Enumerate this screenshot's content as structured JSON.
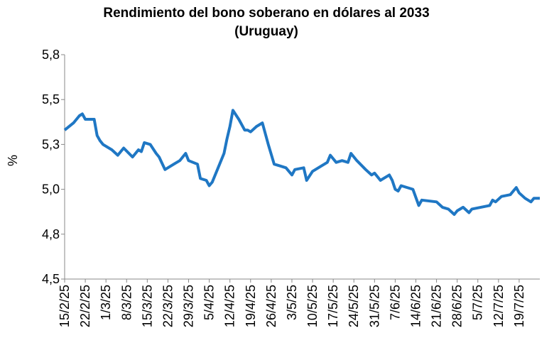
{
  "chart_data": {
    "type": "line",
    "title": "Rendimiento del bono soberano en dólares al 2033",
    "subtitle": "(Uruguay)",
    "y_label": "%",
    "color": "#1f77c4",
    "x": [
      "15/2/25",
      "18/2/25",
      "20/2/25",
      "21/2/25",
      "22/2/25",
      "25/2/25",
      "26/2/25",
      "27/2/25",
      "28/2/25",
      "3/3/25",
      "5/3/25",
      "7/3/25",
      "10/3/25",
      "12/3/25",
      "13/3/25",
      "14/3/25",
      "16/3/25",
      "18/3/25",
      "19/3/25",
      "21/3/25",
      "24/3/25",
      "26/3/25",
      "28/3/25",
      "29/3/25",
      "1/4/25",
      "2/4/25",
      "4/4/25",
      "5/4/25",
      "6/4/25",
      "8/4/25",
      "10/4/25",
      "11/4/25",
      "12/4/25",
      "13/4/25",
      "15/4/25",
      "17/4/25",
      "18/4/25",
      "19/4/25",
      "21/4/25",
      "23/4/25",
      "25/4/25",
      "27/4/25",
      "29/4/25",
      "1/5/25",
      "3/5/25",
      "4/5/25",
      "7/5/25",
      "8/5/25",
      "10/5/25",
      "13/5/25",
      "15/5/25",
      "16/5/25",
      "18/5/25",
      "20/5/25",
      "22/5/25",
      "23/5/25",
      "25/5/25",
      "28/5/25",
      "30/5/25",
      "31/5/25",
      "2/6/25",
      "5/6/25",
      "6/6/25",
      "7/6/25",
      "8/6/25",
      "9/6/25",
      "13/6/25",
      "15/6/25",
      "16/6/25",
      "21/6/25",
      "23/6/25",
      "25/6/25",
      "27/6/25",
      "28/6/25",
      "30/6/25",
      "2/7/25",
      "3/7/25",
      "6/7/25",
      "9/7/25",
      "10/7/25",
      "11/7/25",
      "13/7/25",
      "16/7/25",
      "18/7/25",
      "19/7/25",
      "21/7/25",
      "23/7/25",
      "24/7/25",
      "26/7/25"
    ],
    "values": [
      5.33,
      5.37,
      5.41,
      5.42,
      5.39,
      5.39,
      5.3,
      5.27,
      5.25,
      5.22,
      5.19,
      5.23,
      5.18,
      5.22,
      5.21,
      5.26,
      5.25,
      5.2,
      5.18,
      5.11,
      5.14,
      5.16,
      5.2,
      5.16,
      5.14,
      5.06,
      5.05,
      5.02,
      5.04,
      5.12,
      5.2,
      5.28,
      5.35,
      5.44,
      5.39,
      5.33,
      5.33,
      5.32,
      5.35,
      5.37,
      5.25,
      5.14,
      5.13,
      5.12,
      5.08,
      5.11,
      5.12,
      5.05,
      5.1,
      5.13,
      5.15,
      5.19,
      5.15,
      5.16,
      5.15,
      5.2,
      5.16,
      5.11,
      5.08,
      5.09,
      5.05,
      5.08,
      5.05,
      5.0,
      4.99,
      5.02,
      5.0,
      4.91,
      4.94,
      4.93,
      4.9,
      4.89,
      4.86,
      4.88,
      4.9,
      4.87,
      4.89,
      4.9,
      4.91,
      4.94,
      4.93,
      4.96,
      4.97,
      5.01,
      4.98,
      4.95,
      4.93,
      4.95,
      4.95
    ],
    "xlim": [
      "15/2/25",
      "26/7/25"
    ],
    "xticks": [
      "15/2/25",
      "22/2/25",
      "1/3/25",
      "8/3/25",
      "15/3/25",
      "22/3/25",
      "29/3/25",
      "5/4/25",
      "12/4/25",
      "19/4/25",
      "26/4/25",
      "3/5/25",
      "10/5/25",
      "17/5/25",
      "24/5/25",
      "31/5/25",
      "7/6/25",
      "14/6/25",
      "21/6/25",
      "28/6/25",
      "5/7/25",
      "12/7/25",
      "19/7/25"
    ],
    "ylim": [
      4.5,
      5.75
    ],
    "yticks": [
      {
        "value": 4.5,
        "label": "4,5"
      },
      {
        "value": 4.75,
        "label": "4,8"
      },
      {
        "value": 5.0,
        "label": "5,0"
      },
      {
        "value": 5.25,
        "label": "5,3"
      },
      {
        "value": 5.5,
        "label": "5,5"
      },
      {
        "value": 5.75,
        "label": "5,8"
      }
    ]
  }
}
